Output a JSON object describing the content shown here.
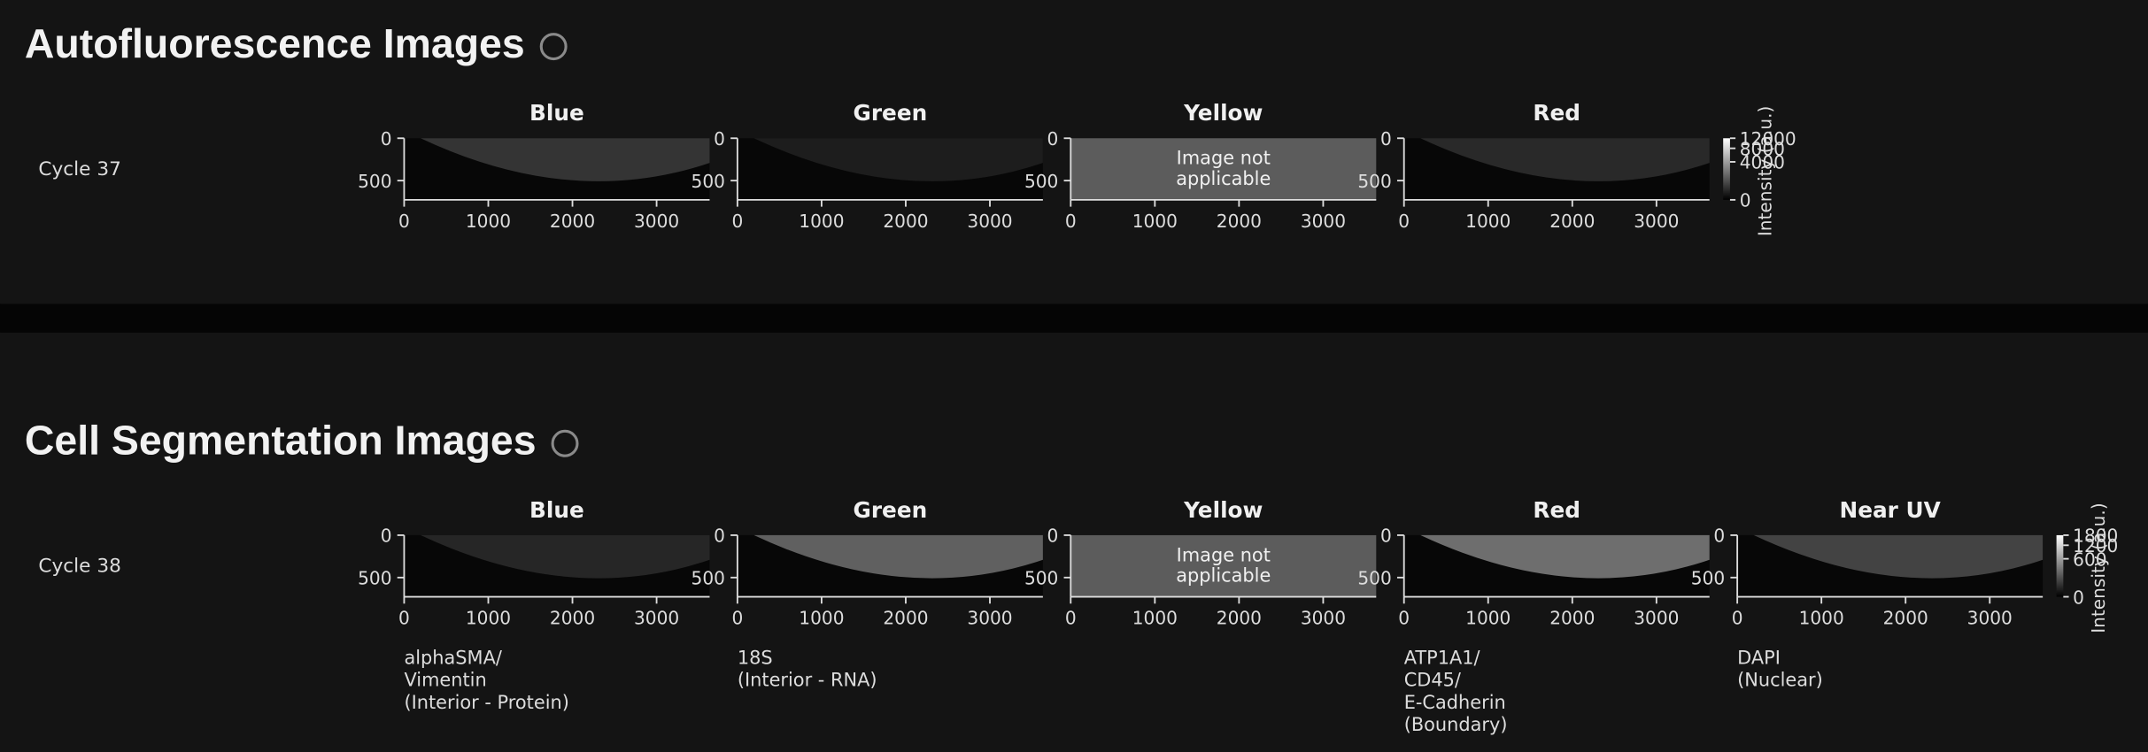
{
  "sections": [
    {
      "title": "Autofluorescence Images",
      "rows": [
        {
          "label": "Cycle 37",
          "panels": [
            {
              "title": "Blue",
              "yticks": [
                0,
                500
              ],
              "xticks": [
                0,
                1000,
                2000,
                3000
              ]
            },
            {
              "title": "Green",
              "yticks": [
                0,
                500
              ],
              "xticks": [
                0,
                1000,
                2000,
                3000
              ]
            },
            {
              "title": "Yellow",
              "yticks": [
                0,
                500
              ],
              "xticks": [
                0,
                1000,
                2000,
                3000
              ],
              "note": [
                "Image not",
                "applicable"
              ]
            },
            {
              "title": "Red",
              "yticks": [
                0,
                500
              ],
              "xticks": [
                0,
                1000,
                2000,
                3000
              ]
            }
          ],
          "colorbar": {
            "ticks": [
              0,
              4000,
              8000,
              12000
            ],
            "label": "Intensity (a.u.)"
          }
        }
      ]
    },
    {
      "title": "Cell Segmentation Images",
      "rows": [
        {
          "label": "Cycle 38",
          "panels": [
            {
              "title": "Blue",
              "yticks": [
                0,
                500
              ],
              "xticks": [
                0,
                1000,
                2000,
                3000
              ],
              "caption": [
                "alphaSMA/",
                "Vimentin",
                "(Interior - Protein)"
              ]
            },
            {
              "title": "Green",
              "yticks": [
                0,
                500
              ],
              "xticks": [
                0,
                1000,
                2000,
                3000
              ],
              "caption": [
                "18S",
                "(Interior - RNA)"
              ]
            },
            {
              "title": "Yellow",
              "yticks": [
                0,
                500
              ],
              "xticks": [
                0,
                1000,
                2000,
                3000
              ],
              "note": [
                "Image not",
                "applicable"
              ]
            },
            {
              "title": "Red",
              "yticks": [
                0,
                500
              ],
              "xticks": [
                0,
                1000,
                2000,
                3000
              ],
              "caption": [
                "ATP1A1/",
                "CD45/",
                "E-Cadherin",
                "(Boundary)"
              ]
            },
            {
              "title": "Near UV",
              "yticks": [
                0,
                500
              ],
              "xticks": [
                0,
                1000,
                2000,
                3000
              ],
              "caption": [
                "DAPI",
                "(Nuclear)"
              ]
            }
          ],
          "colorbar": {
            "ticks": [
              0,
              600,
              1200,
              1800
            ],
            "label": "Intensity (a.u.)"
          }
        }
      ]
    }
  ]
}
